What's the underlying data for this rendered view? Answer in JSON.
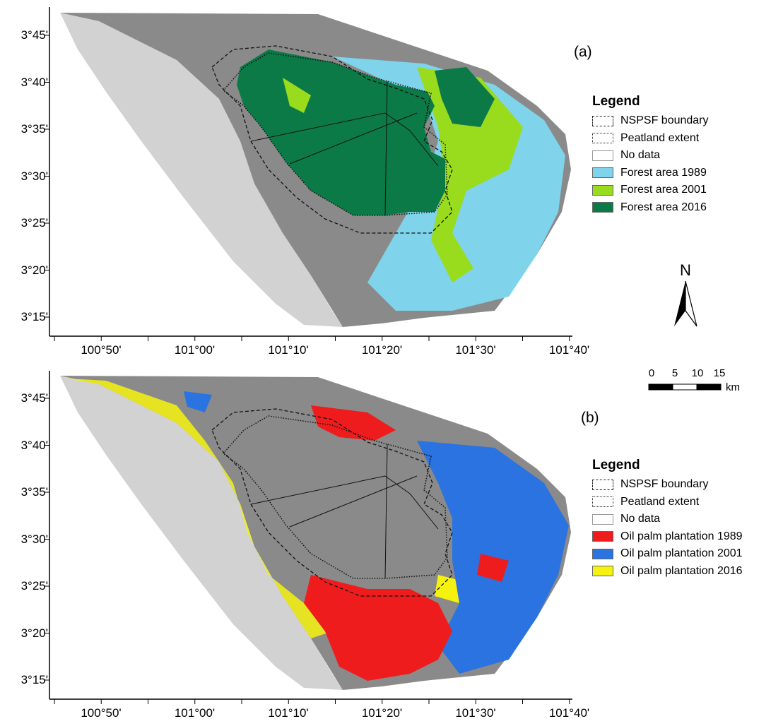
{
  "panels": [
    {
      "id": "a",
      "label": "(a)",
      "legend": {
        "title": "Legend",
        "items": [
          {
            "label": "NSPSF boundary",
            "style": "dashed"
          },
          {
            "label": "Peatland extent",
            "style": "dotted"
          },
          {
            "label": "No data",
            "style": "nodata"
          },
          {
            "label": "Forest area 1989",
            "color": "#7fd3ea"
          },
          {
            "label": "Forest area 2001",
            "color": "#99dc1e"
          },
          {
            "label": "Forest area 2016",
            "color": "#0b7a47"
          }
        ]
      },
      "lat_labels": [
        "3°45'",
        "3°40'",
        "3°35'",
        "3°30'",
        "3°25'",
        "3°20'",
        "3°15'"
      ],
      "lon_labels": [
        "100°50'",
        "101°00'",
        "101°10'",
        "101°20'",
        "101°30'",
        "101°40'"
      ]
    },
    {
      "id": "b",
      "label": "(b)",
      "legend": {
        "title": "Legend",
        "items": [
          {
            "label": "NSPSF boundary",
            "style": "dashed"
          },
          {
            "label": "Peatland extent",
            "style": "dotted"
          },
          {
            "label": "No data",
            "style": "nodata"
          },
          {
            "label": "Oil palm plantation 1989",
            "color": "#ee1c1c"
          },
          {
            "label": "Oil palm plantation 2001",
            "color": "#2a73e0"
          },
          {
            "label": "Oil palm plantation 2016",
            "color": "#f5f20f"
          }
        ]
      },
      "lat_labels": [
        "3°45'",
        "3°40'",
        "3°35'",
        "3°30'",
        "3°25'",
        "3°20'",
        "3°15'"
      ],
      "lon_labels": [
        "100°50'",
        "101°00'",
        "101°10'",
        "101°20'",
        "101°30'",
        "101°40'"
      ]
    }
  ],
  "north_arrow": {
    "label": "N"
  },
  "scale_bar": {
    "ticks": [
      "0",
      "5",
      "10",
      "15"
    ],
    "unit": "km"
  }
}
